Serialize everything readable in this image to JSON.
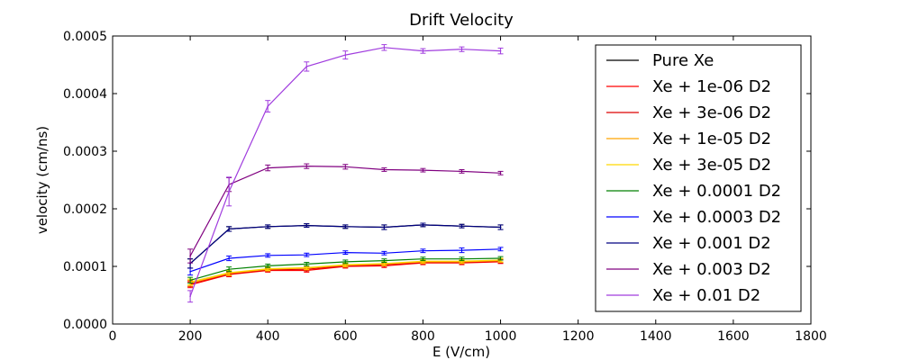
{
  "chart_data": {
    "type": "line",
    "title": "Drift Velocity",
    "xlabel": "E (V/cm)",
    "ylabel": "velocity (cm/ns)",
    "xlim": [
      0,
      1800
    ],
    "ylim": [
      0,
      0.0005
    ],
    "x_ticks": [
      "0",
      "200",
      "400",
      "600",
      "800",
      "1000",
      "1200",
      "1400",
      "1600",
      "1800"
    ],
    "y_ticks": [
      "0.0000",
      "0.0001",
      "0.0002",
      "0.0003",
      "0.0004",
      "0.0005"
    ],
    "grid": false,
    "legend_position": "top-right",
    "x": [
      200,
      300,
      400,
      500,
      600,
      700,
      800,
      900,
      1000
    ],
    "series": [
      {
        "name": "Pure Xe",
        "color": "#000000",
        "values": [
          0.000105,
          0.000165,
          0.000169,
          0.000171,
          0.000169,
          0.000168,
          0.000172,
          0.00017,
          0.000168
        ],
        "errors": [
          8e-06,
          4e-06,
          3e-06,
          3e-06,
          3e-06,
          4e-06,
          3e-06,
          3e-06,
          4e-06
        ]
      },
      {
        "name": "Xe + 1e-06 D2",
        "color": "#ff0000",
        "values": [
          6.8e-05,
          8.6e-05,
          9.3e-05,
          9.3e-05,
          0.0001,
          0.000101,
          0.000106,
          0.000106,
          0.000108
        ],
        "errors": [
          5e-06,
          4e-06,
          3e-06,
          3e-06,
          3e-06,
          3e-06,
          3e-06,
          3e-06,
          3e-06
        ]
      },
      {
        "name": "Xe + 3e-06 D2",
        "color": "#dd0000",
        "values": [
          7e-05,
          8.7e-05,
          9.4e-05,
          9.5e-05,
          0.000101,
          0.000103,
          0.000107,
          0.000107,
          0.000109
        ],
        "errors": [
          5e-06,
          4e-06,
          3e-06,
          3e-06,
          3e-06,
          3e-06,
          3e-06,
          3e-06,
          3e-06
        ]
      },
      {
        "name": "Xe + 1e-05 D2",
        "color": "#ffa500",
        "values": [
          7.1e-05,
          8.8e-05,
          9.5e-05,
          9.7e-05,
          0.000102,
          0.000104,
          0.000108,
          0.000108,
          0.00011
        ],
        "errors": [
          5e-06,
          4e-06,
          3e-06,
          3e-06,
          3e-06,
          3e-06,
          3e-06,
          3e-06,
          3e-06
        ]
      },
      {
        "name": "Xe + 3e-05 D2",
        "color": "#ffd700",
        "values": [
          7.3e-05,
          8.9e-05,
          9.6e-05,
          9.8e-05,
          0.000103,
          0.000105,
          0.000109,
          0.000109,
          0.000111
        ],
        "errors": [
          5e-06,
          4e-06,
          3e-06,
          3e-06,
          3e-06,
          3e-06,
          3e-06,
          3e-06,
          3e-06
        ]
      },
      {
        "name": "Xe + 0.0001 D2",
        "color": "#008000",
        "values": [
          7.6e-05,
          9.5e-05,
          0.000101,
          0.000104,
          0.000108,
          0.00011,
          0.000113,
          0.000113,
          0.000114
        ],
        "errors": [
          5e-06,
          4e-06,
          3e-06,
          3e-06,
          3e-06,
          3e-06,
          3e-06,
          3e-06,
          3e-06
        ]
      },
      {
        "name": "Xe + 0.0003 D2",
        "color": "#0000ff",
        "values": [
          9.1e-05,
          0.000114,
          0.000119,
          0.00012,
          0.000124,
          0.000123,
          0.000127,
          0.000128,
          0.00013
        ],
        "errors": [
          6e-06,
          4e-06,
          3e-06,
          3e-06,
          3e-06,
          3e-06,
          3e-06,
          4e-06,
          3e-06
        ]
      },
      {
        "name": "Xe + 0.001 D2",
        "color": "#000080",
        "values": [
          0.000105,
          0.000165,
          0.000169,
          0.000171,
          0.000169,
          0.000168,
          0.000172,
          0.00017,
          0.000168
        ],
        "errors": [
          8e-06,
          4e-06,
          3e-06,
          3e-06,
          3e-06,
          4e-06,
          3e-06,
          3e-06,
          4e-06
        ]
      },
      {
        "name": "Xe + 0.003 D2",
        "color": "#800080",
        "values": [
          0.000118,
          0.000242,
          0.000271,
          0.000274,
          0.000273,
          0.000268,
          0.000267,
          0.000265,
          0.000262
        ],
        "errors": [
          1.2e-05,
          1.2e-05,
          5e-06,
          4e-06,
          4e-06,
          3e-06,
          3e-06,
          3e-06,
          3e-06
        ]
      },
      {
        "name": "Xe + 0.01 D2",
        "color": "#a03cde",
        "values": [
          4.8e-05,
          0.00023,
          0.000378,
          0.000447,
          0.000467,
          0.00048,
          0.000474,
          0.000477,
          0.000474
        ],
        "errors": [
          1e-05,
          2.5e-05,
          1e-05,
          8e-06,
          7e-06,
          5e-06,
          4e-06,
          4e-06,
          5e-06
        ]
      }
    ]
  }
}
